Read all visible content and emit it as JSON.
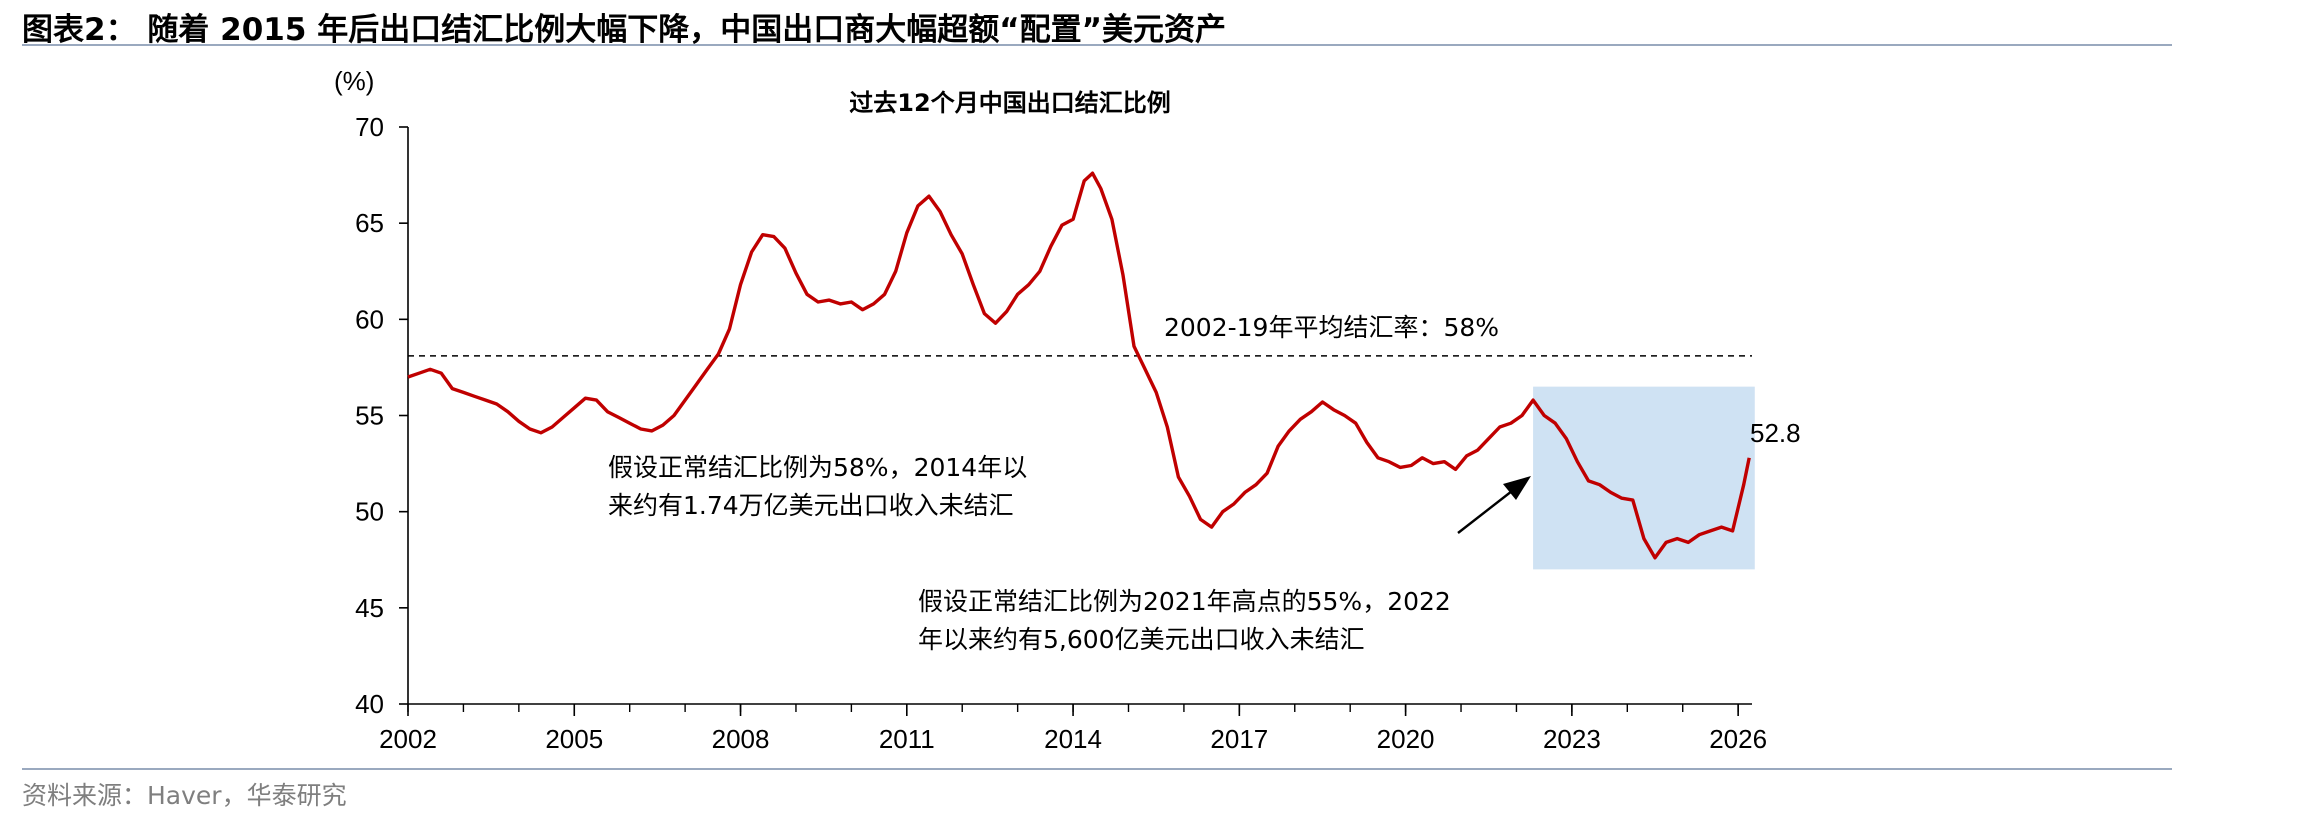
{
  "figure": {
    "title": "图表2： 随着 2015 年后出口结汇比例大幅下降，中国出口商大幅超额“配置”美元资产",
    "source": "资料来源：Haver，华泰研究"
  },
  "chart_data": {
    "type": "line",
    "title": "过去12个月中国出口结汇比例",
    "ylabel": "(%)",
    "xlabel": "",
    "xlim": [
      2002.0,
      2026.25
    ],
    "ylim": [
      40,
      70
    ],
    "xticks": [
      2002,
      2005,
      2008,
      2011,
      2014,
      2017,
      2020,
      2023,
      2026
    ],
    "yticks": [
      40,
      45,
      50,
      55,
      60,
      65,
      70
    ],
    "grid": false,
    "legend": "none",
    "colors": {
      "series": "#c00000",
      "highlight": "#cfe2f3",
      "reference": "#000000",
      "last_label": "#c00000"
    },
    "series": [
      {
        "x": [
          2002.0,
          2002.2,
          2002.4,
          2002.6,
          2002.8,
          2003.0,
          2003.2,
          2003.4,
          2003.6,
          2003.8,
          2004.0,
          2004.2,
          2004.4,
          2004.6,
          2004.8,
          2005.0,
          2005.2,
          2005.4,
          2005.6,
          2005.8,
          2006.0,
          2006.2,
          2006.4,
          2006.6,
          2006.8,
          2007.0,
          2007.2,
          2007.4,
          2007.6,
          2007.8,
          2008.0,
          2008.2,
          2008.4,
          2008.6,
          2008.8,
          2009.0,
          2009.2,
          2009.4,
          2009.6,
          2009.8,
          2010.0,
          2010.2,
          2010.4,
          2010.6,
          2010.8,
          2011.0,
          2011.2,
          2011.4,
          2011.6,
          2011.8,
          2012.0,
          2012.2,
          2012.4,
          2012.6,
          2012.8,
          2013.0,
          2013.2,
          2013.4,
          2013.6,
          2013.8,
          2014.0,
          2014.2,
          2014.35,
          2014.5,
          2014.7,
          2014.9,
          2015.1,
          2015.3,
          2015.5,
          2015.7,
          2015.9,
          2016.1,
          2016.3,
          2016.5,
          2016.7,
          2016.9,
          2017.1,
          2017.3,
          2017.5,
          2017.7,
          2017.9,
          2018.1,
          2018.3,
          2018.5,
          2018.7,
          2018.9,
          2019.1,
          2019.3,
          2019.5,
          2019.7,
          2019.9,
          2020.1,
          2020.3,
          2020.5,
          2020.7,
          2020.9,
          2021.1,
          2021.3,
          2021.5,
          2021.7,
          2021.9,
          2022.1,
          2022.3,
          2022.5,
          2022.7,
          2022.9,
          2023.1,
          2023.3,
          2023.5,
          2023.7,
          2023.9,
          2024.1,
          2024.3,
          2024.5,
          2024.7,
          2024.9,
          2025.1,
          2025.3,
          2025.5,
          2025.7,
          2025.9,
          2026.1,
          2026.2
        ],
        "values": [
          57.0,
          57.2,
          57.4,
          57.2,
          56.4,
          56.2,
          56.0,
          55.8,
          55.6,
          55.2,
          54.7,
          54.3,
          54.1,
          54.4,
          54.9,
          55.4,
          55.9,
          55.8,
          55.2,
          54.9,
          54.6,
          54.3,
          54.2,
          54.5,
          55.0,
          55.8,
          56.6,
          57.4,
          58.2,
          59.5,
          61.8,
          63.5,
          64.4,
          64.3,
          63.7,
          62.4,
          61.3,
          60.9,
          61.0,
          60.8,
          60.9,
          60.5,
          60.8,
          61.3,
          62.5,
          64.5,
          65.9,
          66.4,
          65.6,
          64.4,
          63.4,
          61.8,
          60.3,
          59.8,
          60.4,
          61.3,
          61.8,
          62.5,
          63.8,
          64.9,
          65.2,
          67.2,
          67.6,
          66.8,
          65.2,
          62.3,
          58.6,
          57.4,
          56.2,
          54.4,
          51.8,
          50.8,
          49.6,
          49.2,
          50.0,
          50.4,
          51.0,
          51.4,
          52.0,
          53.4,
          54.2,
          54.8,
          55.2,
          55.7,
          55.3,
          55.0,
          54.6,
          53.6,
          52.8,
          52.6,
          52.3,
          52.4,
          52.8,
          52.5,
          52.6,
          52.2,
          52.9,
          53.2,
          53.8,
          54.4,
          54.6,
          55.0,
          55.8,
          55.0,
          54.6,
          53.8,
          52.6,
          51.6,
          51.4,
          51.0,
          50.7,
          50.6,
          48.6,
          47.6,
          48.4,
          48.6,
          48.4,
          48.8,
          49.0,
          49.2,
          49.0,
          51.4,
          52.8
        ]
      }
    ],
    "reference_line": {
      "y": 58.1,
      "label": "2002-19年平均结汇率：58%"
    },
    "highlight_region": {
      "x0": 2022.3,
      "x1": 2026.3,
      "y0": 47.0,
      "y1": 56.5
    },
    "last_value_label": "52.8",
    "annotations": [
      {
        "lines": [
          "假设正常结汇比例为58%，2014年以",
          "来约有1.74万亿美元出口收入未结汇"
        ]
      },
      {
        "lines": [
          "假设正常结汇比例为2021年高点的55%，2022",
          "年以来约有5,600亿美元出口收入未结汇"
        ]
      }
    ]
  }
}
